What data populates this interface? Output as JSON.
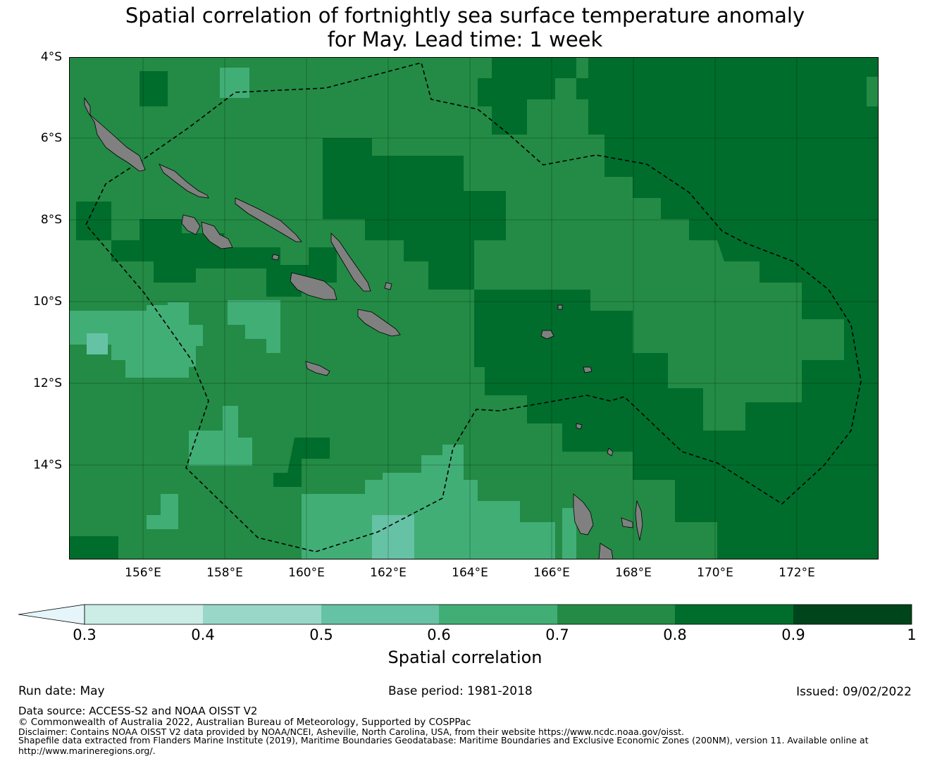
{
  "title": {
    "line1": "Spatial correlation of fortnightly sea surface temperature anomaly",
    "line2": "for May. Lead time: 1 week"
  },
  "map": {
    "latitude_labels": [
      "4°S",
      "6°S",
      "8°S",
      "10°S",
      "12°S",
      "14°S"
    ],
    "longitude_labels": [
      "156°E",
      "158°E",
      "160°E",
      "162°E",
      "164°E",
      "166°E",
      "168°E",
      "170°E",
      "172°E"
    ],
    "land_color": "#808080",
    "eez_boundary_style": "dashed black",
    "colors": {
      "0.5-0.6": "#66c2a4",
      "0.6-0.7": "#41ae76",
      "0.7-0.8": "#238b45",
      "0.8-0.9": "#006d2c"
    }
  },
  "colorbar": {
    "title": "Spatial correlation",
    "tick_labels": [
      "0.3",
      "0.4",
      "0.5",
      "0.6",
      "0.7",
      "0.8",
      "0.9",
      "1"
    ],
    "colors": [
      "#e5f5f9",
      "#ccece6",
      "#99d8c9",
      "#66c2a4",
      "#41ae76",
      "#238b45",
      "#006d2c",
      "#00441b"
    ]
  },
  "footer": {
    "run_date": "Run date: May",
    "base_period": "Base period: 1981-2018",
    "issued": "Issued: 09/02/2022",
    "data_source": "Data source: ACCESS-S2 and NOAA OISST V2",
    "copyright": "© Commonwealth of Australia 2022, Australian Bureau of Meteorology, Supported by COSPPac",
    "disclaimer": "Disclaimer: Contains NOAA OISST V2 data provided by NOAA/NCEI, Asheville, North Carolina, USA, from their website https://www.ncdc.noaa.gov/oisst.",
    "shapefile": "Shapefile data extracted from Flanders Marine Institute (2019), Maritime Boundaries Geodatabase: Maritime Boundaries and Exclusive Economic Zones (200NM), version 11. Available online at",
    "shapefile_url": "http://www.marineregions.org/."
  }
}
